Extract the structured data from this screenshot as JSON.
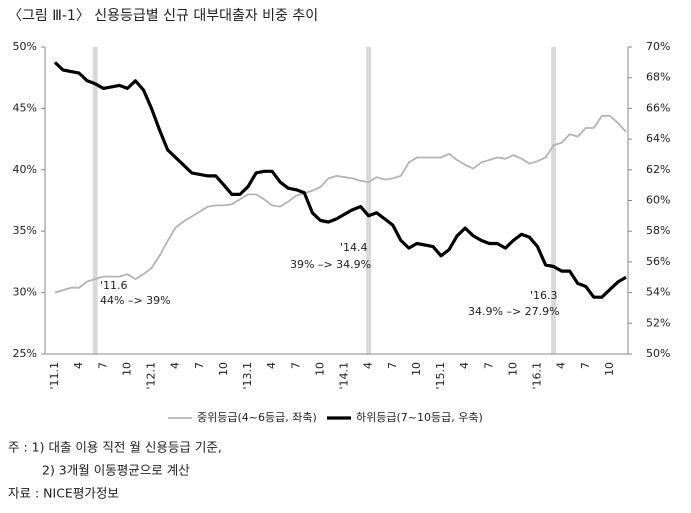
{
  "title": "〈그림 Ⅲ-1〉 신용등급별 신규 대부대출자 비중 추이",
  "chart_data": {
    "type": "line",
    "categories": [
      "'11.1",
      null,
      null,
      "4",
      null,
      null,
      "7",
      null,
      null,
      "10",
      null,
      null,
      "'12.1",
      null,
      null,
      "4",
      null,
      null,
      "7",
      null,
      null,
      "10",
      null,
      null,
      "'13.1",
      null,
      null,
      "4",
      null,
      null,
      "7",
      null,
      null,
      "10",
      null,
      null,
      "'14.1",
      null,
      null,
      "4",
      null,
      null,
      "7",
      null,
      null,
      "10",
      null,
      null,
      "'15.1",
      null,
      null,
      "4",
      null,
      null,
      "7",
      null,
      null,
      "10",
      null,
      null,
      "'16.1",
      null,
      null,
      "4",
      null,
      null,
      "7",
      null,
      null,
      "10",
      null,
      null
    ],
    "series": [
      {
        "name": "중위등급(4~6등급, 좌축)",
        "color": "#b4b4b4",
        "axis": "y",
        "values": [
          30.0,
          30.2,
          30.4,
          30.4,
          30.9,
          31.1,
          31.3,
          31.3,
          31.3,
          31.5,
          31.1,
          31.5,
          32.0,
          33.0,
          34.2,
          35.3,
          35.8,
          36.2,
          36.6,
          37.0,
          37.1,
          37.1,
          37.2,
          37.6,
          38.0,
          38.0,
          37.6,
          37.1,
          37.0,
          37.4,
          37.9,
          38.1,
          38.3,
          38.6,
          39.3,
          39.5,
          39.4,
          39.3,
          39.1,
          39.0,
          39.4,
          39.2,
          39.3,
          39.5,
          40.6,
          41.0,
          41.0,
          41.0,
          41.0,
          41.3,
          40.8,
          40.4,
          40.1,
          40.6,
          40.8,
          41.0,
          40.9,
          41.2,
          40.9,
          40.5,
          40.7,
          41.0,
          42.0,
          42.2,
          42.9,
          42.7,
          43.4,
          43.4,
          44.4,
          44.4,
          43.8,
          43.1
        ]
      },
      {
        "name": "하위등급(7~10등급, 우축)",
        "color": "#000000",
        "axis": "y2",
        "values": [
          69.0,
          68.5,
          68.4,
          68.3,
          67.8,
          67.6,
          67.3,
          67.4,
          67.5,
          67.3,
          67.8,
          67.2,
          66.0,
          64.6,
          63.3,
          62.8,
          62.3,
          61.8,
          61.7,
          61.6,
          61.6,
          61.0,
          60.4,
          60.4,
          60.9,
          61.8,
          61.9,
          61.9,
          61.2,
          60.8,
          60.7,
          60.5,
          59.2,
          58.7,
          58.6,
          58.8,
          59.1,
          59.4,
          59.6,
          59.0,
          59.2,
          58.8,
          58.4,
          57.4,
          56.9,
          57.2,
          57.1,
          57.0,
          56.4,
          56.8,
          57.7,
          58.2,
          57.7,
          57.4,
          57.2,
          57.2,
          56.9,
          57.4,
          57.8,
          57.6,
          57.0,
          55.8,
          55.7,
          55.4,
          55.4,
          54.6,
          54.4,
          53.7,
          53.7,
          54.2,
          54.7,
          55.0
        ]
      }
    ],
    "ylim": [
      25,
      50
    ],
    "yticks": [
      {
        "value": 25,
        "label": "25%"
      },
      {
        "value": 30,
        "label": "30%"
      },
      {
        "value": 35,
        "label": "35%"
      },
      {
        "value": 40,
        "label": "40%"
      },
      {
        "value": 45,
        "label": "45%"
      },
      {
        "value": 50,
        "label": "50%"
      }
    ],
    "y2lim": [
      50,
      70
    ],
    "y2ticks": [
      {
        "value": 50,
        "label": "50%"
      },
      {
        "value": 52,
        "label": "52%"
      },
      {
        "value": 54,
        "label": "54%"
      },
      {
        "value": 56,
        "label": "56%"
      },
      {
        "value": 58,
        "label": "58%"
      },
      {
        "value": 60,
        "label": "60%"
      },
      {
        "value": 62,
        "label": "62%"
      },
      {
        "value": 64,
        "label": "64%"
      },
      {
        "value": 66,
        "label": "66%"
      },
      {
        "value": 68,
        "label": "68%"
      },
      {
        "value": 70,
        "label": "70%"
      }
    ],
    "annotations": [
      "'11.6",
      "44% –> 39%",
      "'14.4",
      "39% –> 34.9%",
      "'16.3",
      "34.9% –> 27.9%"
    ]
  },
  "notes": [
    "주 : 1) 대출 이용 직전 월 신용등급 기준,",
    "2) 3개월 이동평균으로 계산",
    "자료 : NICE평가정보"
  ]
}
